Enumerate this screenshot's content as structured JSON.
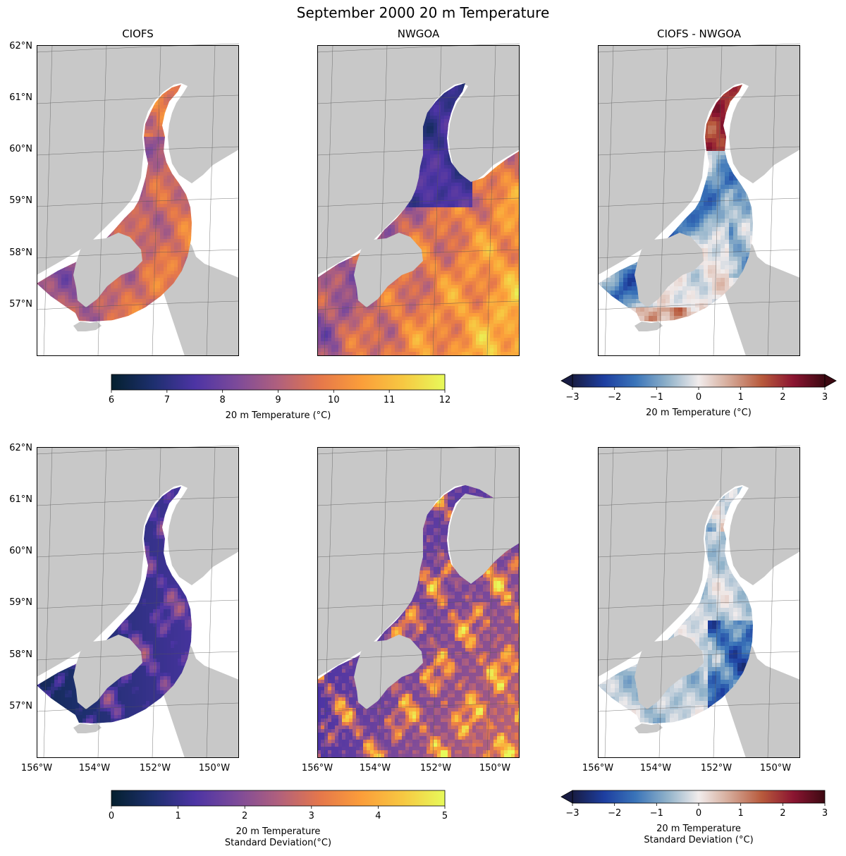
{
  "figure": {
    "title": "September 2000 20 m Temperature"
  },
  "colors": {
    "land": "#c8c8c8",
    "thermal": [
      "#04202e",
      "#1d2f6e",
      "#4c34a4",
      "#7c4a9a",
      "#b0607d",
      "#e5774b",
      "#fb9e3a",
      "#f7c842",
      "#e7fa5a"
    ],
    "balance": [
      "#181c43",
      "#1d3ea0",
      "#3a74b9",
      "#8fb1c9",
      "#f1ecec",
      "#d4a795",
      "#b85a3c",
      "#8b1531",
      "#3c0912"
    ]
  },
  "chart_data": [
    {
      "id": "mean-ciofs",
      "type": "heatmap",
      "title": "CIOFS",
      "domain": "ciofs",
      "variable": "mean",
      "colormap": "thermal",
      "xlim": [
        -156,
        -149
      ],
      "ylim": [
        56,
        62
      ],
      "xticks": [],
      "yticks": [
        "62°N",
        "61°N",
        "60°N",
        "59°N",
        "58°N",
        "57°N"
      ]
    },
    {
      "id": "mean-nwgoa",
      "type": "heatmap",
      "title": "NWGOA",
      "domain": "nwgoa",
      "variable": "mean",
      "colormap": "thermal",
      "xlim": [
        -156,
        -149
      ],
      "ylim": [
        56,
        62
      ],
      "xticks": [],
      "yticks": []
    },
    {
      "id": "mean-diff",
      "type": "heatmap",
      "title": "CIOFS - NWGOA",
      "domain": "ciofs",
      "variable": "mean-diff",
      "colormap": "balance",
      "xlim": [
        -156,
        -149
      ],
      "ylim": [
        56,
        62
      ],
      "xticks": [],
      "yticks": []
    },
    {
      "id": "std-ciofs",
      "type": "heatmap",
      "title": "",
      "domain": "ciofs",
      "variable": "std",
      "colormap": "thermal",
      "xlim": [
        -156,
        -149
      ],
      "ylim": [
        56,
        62
      ],
      "xticks": [
        "156°W",
        "154°W",
        "152°W",
        "150°W"
      ],
      "yticks": [
        "62°N",
        "61°N",
        "60°N",
        "59°N",
        "58°N",
        "57°N"
      ]
    },
    {
      "id": "std-nwgoa",
      "type": "heatmap",
      "title": "",
      "domain": "nwgoa",
      "variable": "std",
      "colormap": "thermal",
      "xlim": [
        -156,
        -149
      ],
      "ylim": [
        56,
        62
      ],
      "xticks": [
        "156°W",
        "154°W",
        "152°W",
        "150°W"
      ],
      "yticks": []
    },
    {
      "id": "std-diff",
      "type": "heatmap",
      "title": "",
      "domain": "ciofs",
      "variable": "std-diff",
      "colormap": "balance",
      "xlim": [
        -156,
        -149
      ],
      "ylim": [
        56,
        62
      ],
      "xticks": [
        "156°W",
        "154°W",
        "152°W",
        "150°W"
      ],
      "yticks": []
    }
  ],
  "colorbars": [
    {
      "id": "cb-mean",
      "cmap": "thermal",
      "min": 6,
      "max": 12,
      "extend": "neither",
      "ticks": [
        "6",
        "7",
        "8",
        "9",
        "10",
        "11",
        "12"
      ],
      "label": [
        "20 m Temperature (°C)"
      ]
    },
    {
      "id": "cb-mean-diff",
      "cmap": "balance",
      "min": -3,
      "max": 3,
      "extend": "both",
      "ticks": [
        "−3",
        "−2",
        "−1",
        "0",
        "1",
        "2",
        "3"
      ],
      "label": [
        "20 m Temperature (°C)"
      ]
    },
    {
      "id": "cb-std",
      "cmap": "thermal",
      "min": 0,
      "max": 5,
      "extend": "neither",
      "ticks": [
        "0",
        "1",
        "2",
        "3",
        "4",
        "5"
      ],
      "label": [
        "20 m Temperature",
        "Standard Deviation(°C)"
      ]
    },
    {
      "id": "cb-std-diff",
      "cmap": "balance",
      "min": -3,
      "max": 3,
      "extend": "min",
      "ticks": [
        "−3",
        "−2",
        "−1",
        "0",
        "1",
        "2",
        "3"
      ],
      "label": [
        "20 m Temperature",
        "Standard Deviation (°C)"
      ]
    }
  ]
}
